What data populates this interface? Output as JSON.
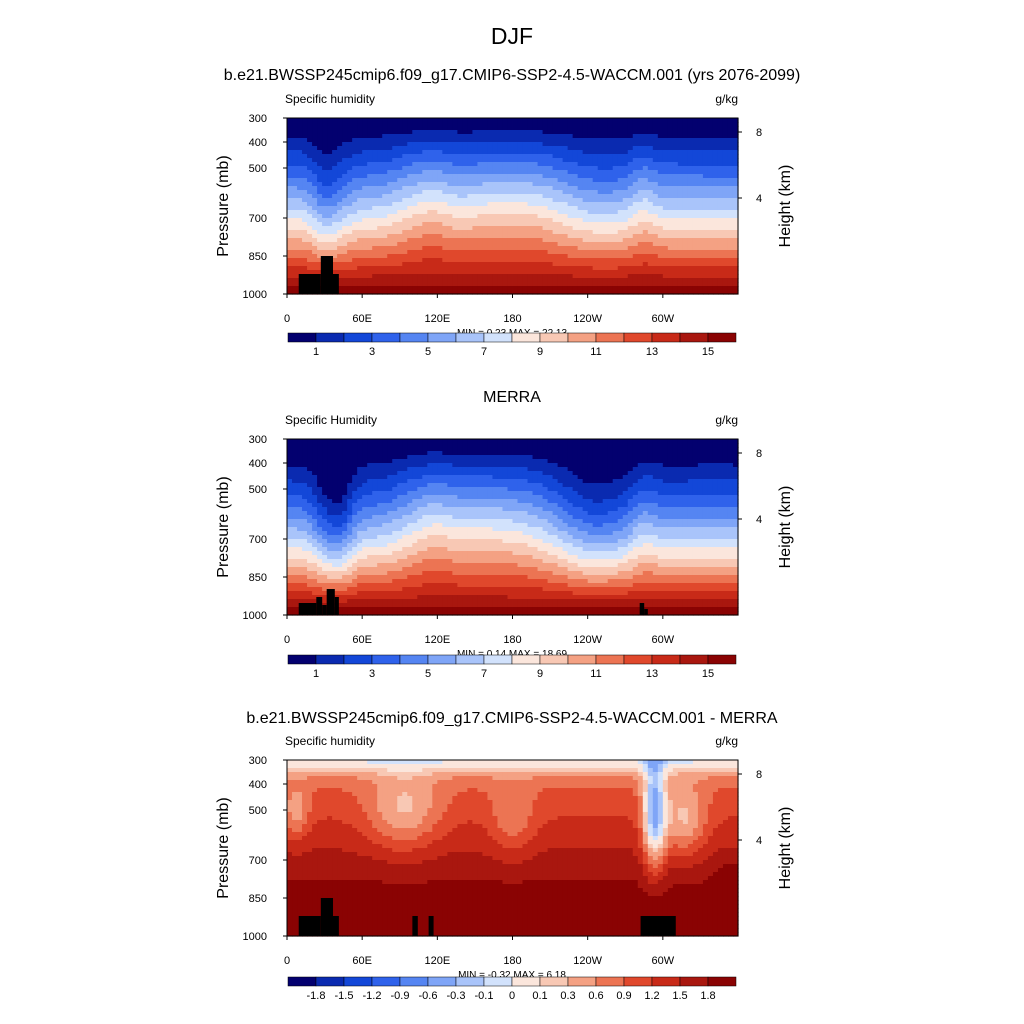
{
  "figure": {
    "title": "DJF"
  },
  "palettes": {
    "abs": [
      "#03006f",
      "#0a2ab0",
      "#1347d8",
      "#2f62eb",
      "#5585f2",
      "#7fa5f7",
      "#a9c4fa",
      "#d2e2fc",
      "#fbe6dc",
      "#f8c8b4",
      "#f4a183",
      "#ec7453",
      "#e0482c",
      "#c82a18",
      "#a9170f",
      "#8a0303"
    ],
    "diff": [
      "#03006f",
      "#0a2ab0",
      "#1347d8",
      "#2f62eb",
      "#5585f2",
      "#7fa5f7",
      "#a9c4fa",
      "#d2e2fc",
      "#fbe6dc",
      "#f8c8b4",
      "#f4a183",
      "#ec7453",
      "#e0482c",
      "#c82a18",
      "#a9170f",
      "#8a0303"
    ]
  },
  "chart_data": [
    {
      "type": "heatmap",
      "title": "b.e21.BWSSP245cmip6.f09_g17.CMIP6-SSP2-4.5-WACCM.001 (yrs 2076-2099)",
      "left_label": "Specific humidity",
      "right_label": "g/kg",
      "ylabel": "Pressure (mb)",
      "ylabel_right": "Height (km)",
      "x_ticks": [
        "0",
        "60E",
        "120E",
        "180",
        "120W",
        "60W"
      ],
      "y_ticks": [
        "300",
        "400",
        "500",
        "700",
        "850",
        "1000"
      ],
      "y_ticks_right": [
        "8",
        "4"
      ],
      "stats": "MIN =   0.23  MAX =   22.13",
      "min": 0.23,
      "max": 22.13,
      "colorbar_labels": [
        "1",
        "3",
        "5",
        "7",
        "9",
        "11",
        "13",
        "15"
      ],
      "colorbar_levels": [
        0,
        1,
        2,
        3,
        4,
        5,
        6,
        7,
        8,
        9,
        10,
        11,
        12,
        13,
        14,
        15,
        16
      ]
    },
    {
      "type": "heatmap",
      "title": "MERRA",
      "left_label": "Specific Humidity",
      "right_label": "g/kg",
      "ylabel": "Pressure (mb)",
      "ylabel_right": "Height (km)",
      "x_ticks": [
        "0",
        "60E",
        "120E",
        "180",
        "120W",
        "60W"
      ],
      "y_ticks": [
        "300",
        "400",
        "500",
        "700",
        "850",
        "1000"
      ],
      "y_ticks_right": [
        "8",
        "4"
      ],
      "stats": "MIN =   0.14  MAX =   18.69",
      "min": 0.14,
      "max": 18.69,
      "colorbar_labels": [
        "1",
        "3",
        "5",
        "7",
        "9",
        "11",
        "13",
        "15"
      ],
      "colorbar_levels": [
        0,
        1,
        2,
        3,
        4,
        5,
        6,
        7,
        8,
        9,
        10,
        11,
        12,
        13,
        14,
        15,
        16
      ]
    },
    {
      "type": "heatmap",
      "title": "b.e21.BWSSP245cmip6.f09_g17.CMIP6-SSP2-4.5-WACCM.001 - MERRA",
      "left_label": "Specific humidity",
      "right_label": "g/kg",
      "ylabel": "Pressure (mb)",
      "ylabel_right": "Height (km)",
      "x_ticks": [
        "0",
        "60E",
        "120E",
        "180",
        "120W",
        "60W"
      ],
      "y_ticks": [
        "300",
        "400",
        "500",
        "700",
        "850",
        "1000"
      ],
      "y_ticks_right": [
        "8",
        "4"
      ],
      "stats": "MIN =  -0.32  MAX =   6.18",
      "min": -0.32,
      "max": 6.18,
      "colorbar_labels": [
        "-1.8",
        "-1.5",
        "-1.2",
        "-0.9",
        "-0.6",
        "-0.3",
        "-0.1",
        "0",
        "0.1",
        "0.3",
        "0.6",
        "0.9",
        "1.2",
        "1.5",
        "1.8"
      ],
      "colorbar_levels": [
        -2.1,
        -1.8,
        -1.5,
        -1.2,
        -0.9,
        -0.6,
        -0.3,
        -0.1,
        0,
        0.1,
        0.3,
        0.6,
        0.9,
        1.2,
        1.5,
        1.8,
        2.1
      ]
    }
  ]
}
